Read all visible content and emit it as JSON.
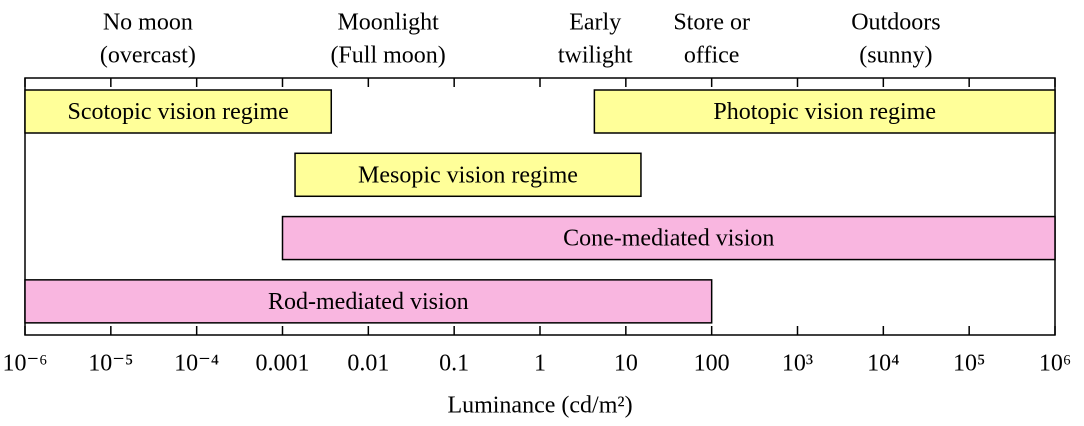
{
  "chart_data": {
    "type": "range",
    "xscale": "log",
    "xlim": [
      1e-06,
      1000000
    ],
    "xticks": [
      {
        "value": 1e-06,
        "label": "10⁻⁶"
      },
      {
        "value": 1e-05,
        "label": "10⁻⁵"
      },
      {
        "value": 0.0001,
        "label": "10⁻⁴"
      },
      0.001,
      0.01,
      0.1,
      1,
      10,
      100,
      {
        "value": 1000,
        "label": "10³"
      },
      {
        "value": 10000,
        "label": "10⁴"
      },
      {
        "value": 100000,
        "label": "10⁵"
      },
      {
        "value": 1000000,
        "label": "10⁶"
      }
    ],
    "xlabel": "Luminance (cd/m²)",
    "annotations": [
      {
        "lines": [
          "No moon",
          "(overcast)"
        ],
        "x": 2.7e-05
      },
      {
        "lines": [
          "Moonlight",
          "(Full moon)"
        ],
        "x": 0.017
      },
      {
        "lines": [
          "Early",
          "twilight"
        ],
        "x": 4.4
      },
      {
        "lines": [
          "Store or",
          "office"
        ],
        "x": 100
      },
      {
        "lines": [
          "Outdoors",
          "(sunny)"
        ],
        "x": 14000
      }
    ],
    "rows": [
      [
        {
          "name": "Scotopic vision regime",
          "color": "#ffff99",
          "values": [
            1e-06,
            0.0037
          ]
        },
        {
          "name": "Photopic vision regime",
          "color": "#ffff99",
          "values": [
            4.3,
            1000000
          ]
        }
      ],
      [
        {
          "name": "Mesopic vision regime",
          "color": "#ffff99",
          "values": [
            0.0014,
            15
          ]
        }
      ],
      [
        {
          "name": "Cone-mediated vision",
          "color": "#f9b6e0",
          "values": [
            0.001,
            1000000
          ]
        }
      ],
      [
        {
          "name": "Rod-mediated vision",
          "color": "#f9b6e0",
          "values": [
            1e-06,
            100
          ]
        }
      ]
    ]
  }
}
